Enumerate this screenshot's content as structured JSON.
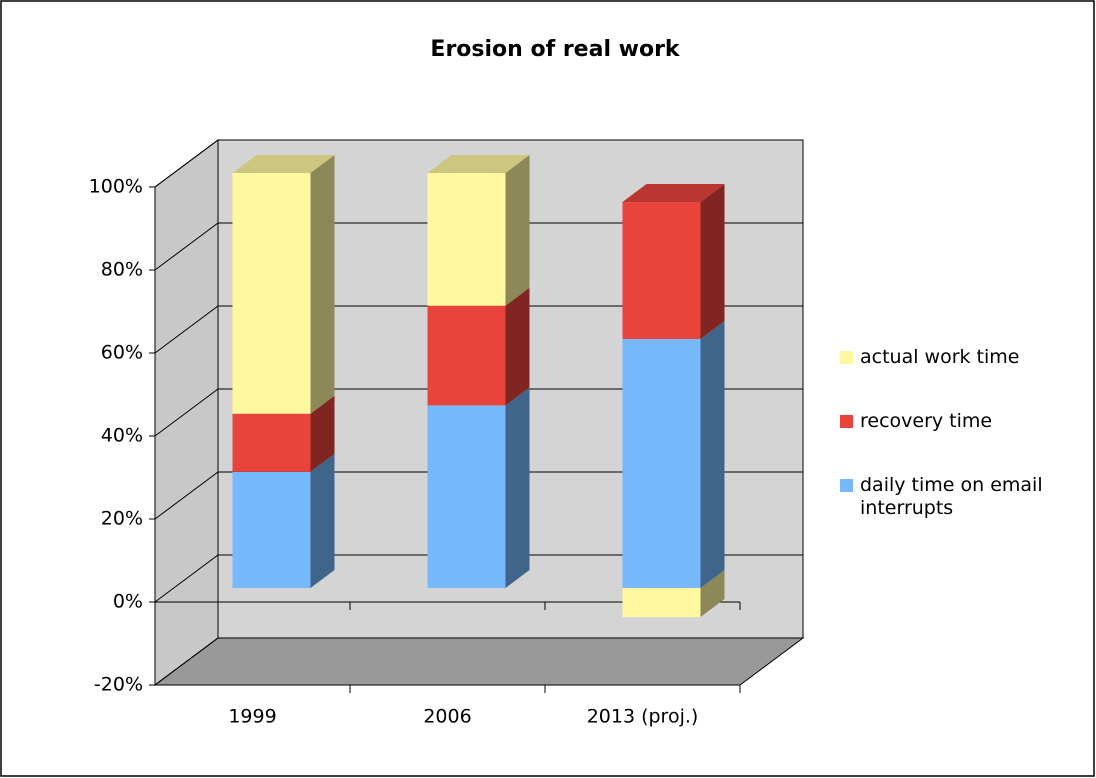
{
  "chart_data": {
    "type": "bar3d_stacked",
    "title": "Erosion of real work",
    "categories": [
      "1999",
      "2006",
      "2013 (proj.)"
    ],
    "series": [
      {
        "name": "daily time on email interrupts",
        "color": "#75b8fc",
        "values": [
          28,
          44,
          60
        ]
      },
      {
        "name": "recovery time",
        "color": "#e8443c",
        "values": [
          14,
          24,
          33
        ]
      },
      {
        "name": "actual work time",
        "color": "#fff8a0",
        "values": [
          58,
          32,
          -7
        ]
      }
    ],
    "ylim": [
      -20,
      100
    ],
    "yticks": [
      {
        "value": -20,
        "label": "-20%"
      },
      {
        "value": 0,
        "label": "0%"
      },
      {
        "value": 20,
        "label": "20%"
      },
      {
        "value": 40,
        "label": "40%"
      },
      {
        "value": 60,
        "label": "60%"
      },
      {
        "value": 80,
        "label": "80%"
      },
      {
        "value": 100,
        "label": "100%"
      }
    ],
    "grid": true,
    "legend": "right"
  }
}
